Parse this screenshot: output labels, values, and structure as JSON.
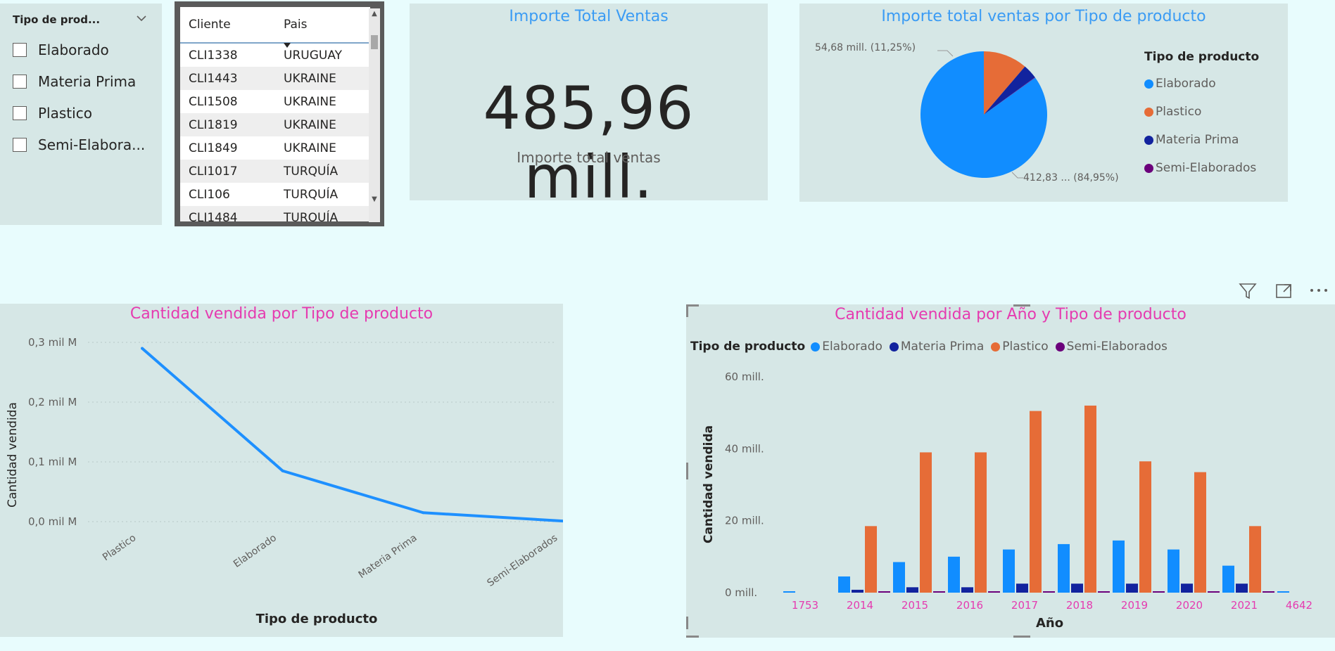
{
  "slicer": {
    "title": "Tipo de prod...",
    "items": [
      {
        "label": "Elaborado"
      },
      {
        "label": "Materia Prima"
      },
      {
        "label": "Plastico"
      },
      {
        "label": "Semi-Elabora..."
      }
    ]
  },
  "table": {
    "headers": [
      "Cliente",
      "Pais"
    ],
    "rows": [
      [
        "CLI1338",
        "URUGUAY"
      ],
      [
        "CLI1443",
        "UKRAINE"
      ],
      [
        "CLI1508",
        "UKRAINE"
      ],
      [
        "CLI1819",
        "UKRAINE"
      ],
      [
        "CLI1849",
        "UKRAINE"
      ],
      [
        "CLI1017",
        "TURQUÍA"
      ],
      [
        "CLI106",
        "TURQUÍA"
      ],
      [
        "CLI1484",
        "TURQUÍA"
      ]
    ]
  },
  "kpi": {
    "title": "Importe Total Ventas",
    "value": "485,96 mill.",
    "label": "Importe total ventas"
  },
  "colors": {
    "elaborado": "#118dff",
    "plastico": "#e66c37",
    "materia_prima": "#12239e",
    "semi_elaborados": "#6b007b",
    "title_blue": "#3a9bf4",
    "title_pink": "#e53bb0",
    "line": "#1e90ff"
  },
  "pie": {
    "title": "Importe total ventas por Tipo de producto",
    "legend_title": "Tipo de producto",
    "label_small": "54,68 mill. (11,25%)",
    "label_big": "412,83 ... (84,95%)"
  },
  "line_chart": {
    "title": "Cantidad vendida por Tipo de producto",
    "ylabel": "Cantidad vendida",
    "xlabel": "Tipo de producto",
    "yticks": [
      "0,3 mil M",
      "0,2 mil M",
      "0,1 mil M",
      "0,0 mil M"
    ]
  },
  "bar_chart": {
    "title": "Cantidad vendida por Año y Tipo de producto",
    "legend_title": "Tipo de producto",
    "ylabel": "Cantidad vendida",
    "xlabel": "Año",
    "yticks": [
      "60 mill.",
      "40 mill.",
      "20 mill.",
      "0 mill."
    ]
  },
  "chart_data": [
    {
      "type": "pie",
      "title": "Importe total ventas por Tipo de producto",
      "legend": [
        "Elaborado",
        "Plastico",
        "Materia Prima",
        "Semi-Elaborados"
      ],
      "values": [
        412.83,
        54.68,
        18.0,
        0.45
      ],
      "unit": "mill."
    },
    {
      "type": "line",
      "title": "Cantidad vendida por Tipo de producto",
      "xlabel": "Tipo de producto",
      "ylabel": "Cantidad vendida",
      "categories": [
        "Plastico",
        "Elaborado",
        "Materia Prima",
        "Semi-Elaborados"
      ],
      "values": [
        0.29,
        0.085,
        0.015,
        0.001
      ],
      "ylim": [
        0,
        0.3
      ],
      "unit": "mil M"
    },
    {
      "type": "bar",
      "title": "Cantidad vendida por Año y Tipo de producto",
      "xlabel": "Año",
      "ylabel": "Cantidad vendida",
      "categories": [
        "1753",
        "2014",
        "2015",
        "2016",
        "2017",
        "2018",
        "2019",
        "2020",
        "2021",
        "4642"
      ],
      "series": [
        {
          "name": "Elaborado",
          "values": [
            0.2,
            4.5,
            8.5,
            10,
            12,
            13.5,
            14.5,
            12,
            7.5,
            0.2
          ]
        },
        {
          "name": "Materia Prima",
          "values": [
            0,
            0.8,
            1.5,
            1.5,
            2.5,
            2.5,
            2.5,
            2.5,
            2.5,
            0
          ]
        },
        {
          "name": "Plastico",
          "values": [
            0,
            18.5,
            39,
            39,
            50.5,
            52,
            36.5,
            33.5,
            18.5,
            0
          ]
        },
        {
          "name": "Semi-Elaborados",
          "values": [
            0,
            0.3,
            0.3,
            0.3,
            0.3,
            0.3,
            0.3,
            0.3,
            0.3,
            0
          ]
        }
      ],
      "ylim": [
        0,
        60
      ],
      "unit": "mill."
    }
  ]
}
